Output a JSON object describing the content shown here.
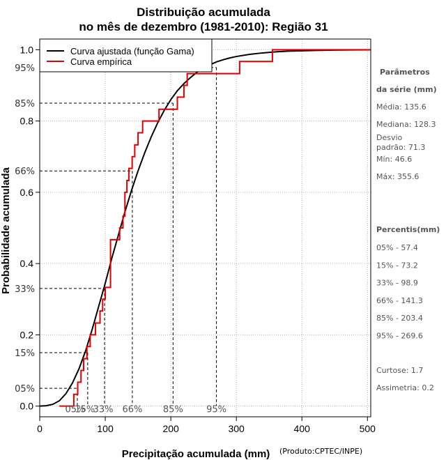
{
  "chart_data": {
    "type": "line",
    "title": [
      "Distribuição acumulada",
      "no mês de dezembro (1981-2010): Região 31"
    ],
    "xlabel": "Precipitação acumulada (mm)",
    "ylabel": "Probabilidade acumulada",
    "credit": "(Produto:CPTEC/INPE)",
    "xlim": [
      0,
      505
    ],
    "ylim": [
      -0.03,
      1.03
    ],
    "x_ticks": [
      0,
      100,
      200,
      300,
      400,
      500
    ],
    "y_ticks": [
      0.0,
      0.2,
      0.4,
      0.6,
      0.8,
      1.0
    ],
    "y_tick_labels": [
      "0.0",
      "0.2",
      "0.4",
      "0.6",
      "0.8",
      "1.0"
    ],
    "grid": true,
    "legend": {
      "position": "top-left",
      "entries": [
        {
          "label": "Curva ajustada (função Gama)",
          "color": "#000000"
        },
        {
          "label": "Curva empírica",
          "color": "#e00000"
        }
      ]
    },
    "series": [
      {
        "name": "Curva ajustada (função Gama)",
        "color": "#000000",
        "x": [
          0,
          10,
          20,
          30,
          40,
          50,
          60,
          70,
          80,
          90,
          100,
          110,
          120,
          130,
          140,
          150,
          160,
          170,
          180,
          190,
          200,
          210,
          220,
          230,
          240,
          250,
          260,
          270,
          280,
          290,
          300,
          320,
          340,
          360,
          380,
          400,
          420,
          450,
          480,
          505
        ],
        "y": [
          0.0,
          0.001,
          0.005,
          0.015,
          0.035,
          0.065,
          0.105,
          0.155,
          0.215,
          0.28,
          0.345,
          0.415,
          0.48,
          0.545,
          0.605,
          0.66,
          0.71,
          0.755,
          0.795,
          0.83,
          0.86,
          0.885,
          0.905,
          0.922,
          0.937,
          0.949,
          0.958,
          0.966,
          0.972,
          0.977,
          0.981,
          0.987,
          0.991,
          0.994,
          0.996,
          0.997,
          0.998,
          0.999,
          0.9995,
          0.9998
        ]
      },
      {
        "name": "Curva empírica",
        "color": "#e00000",
        "type": "step",
        "x": [
          30,
          46.6,
          52,
          58,
          63,
          67,
          72,
          77,
          85,
          92,
          96,
          100,
          108,
          117,
          122,
          127,
          130,
          133,
          136,
          141,
          145,
          150,
          157,
          166,
          182,
          200,
          210,
          220,
          225,
          245,
          305,
          355,
          505
        ],
        "y": [
          0.0,
          0.0,
          0.033,
          0.067,
          0.1,
          0.133,
          0.167,
          0.2,
          0.233,
          0.267,
          0.3,
          0.333,
          0.467,
          0.467,
          0.5,
          0.533,
          0.6,
          0.633,
          0.667,
          0.7,
          0.733,
          0.767,
          0.8,
          0.8,
          0.833,
          0.833,
          0.867,
          0.9,
          0.933,
          0.933,
          0.967,
          1.0,
          1.0
        ]
      }
    ],
    "percentile_guides": [
      {
        "p": 0.05,
        "label": "05%",
        "value": 57.4
      },
      {
        "p": 0.15,
        "label": "15%",
        "value": 73.2
      },
      {
        "p": 0.33,
        "label": "33%",
        "value": 98.9
      },
      {
        "p": 0.66,
        "label": "66%",
        "value": 141.3
      },
      {
        "p": 0.85,
        "label": "85%",
        "value": 203.4
      },
      {
        "p": 0.95,
        "label": "95%",
        "value": 269.6
      }
    ],
    "side_panel": {
      "params_heading": [
        "Parâmetros",
        "da série (mm)"
      ],
      "params": [
        "Média: 135.6",
        "Mediana: 128.3",
        "Desvio",
        "padrão: 71.3",
        "Mín: 46.6",
        "Máx: 355.6"
      ],
      "percentiles_heading": "Percentis(mm)",
      "percentiles": [
        "05% - 57.4",
        "15% - 73.2",
        "33% - 98.9",
        "66% - 141.3",
        "85% - 203.4",
        "95% - 269.6"
      ],
      "stats": [
        "Curtose: 1.7",
        "Assimetria: 0.2"
      ]
    }
  }
}
